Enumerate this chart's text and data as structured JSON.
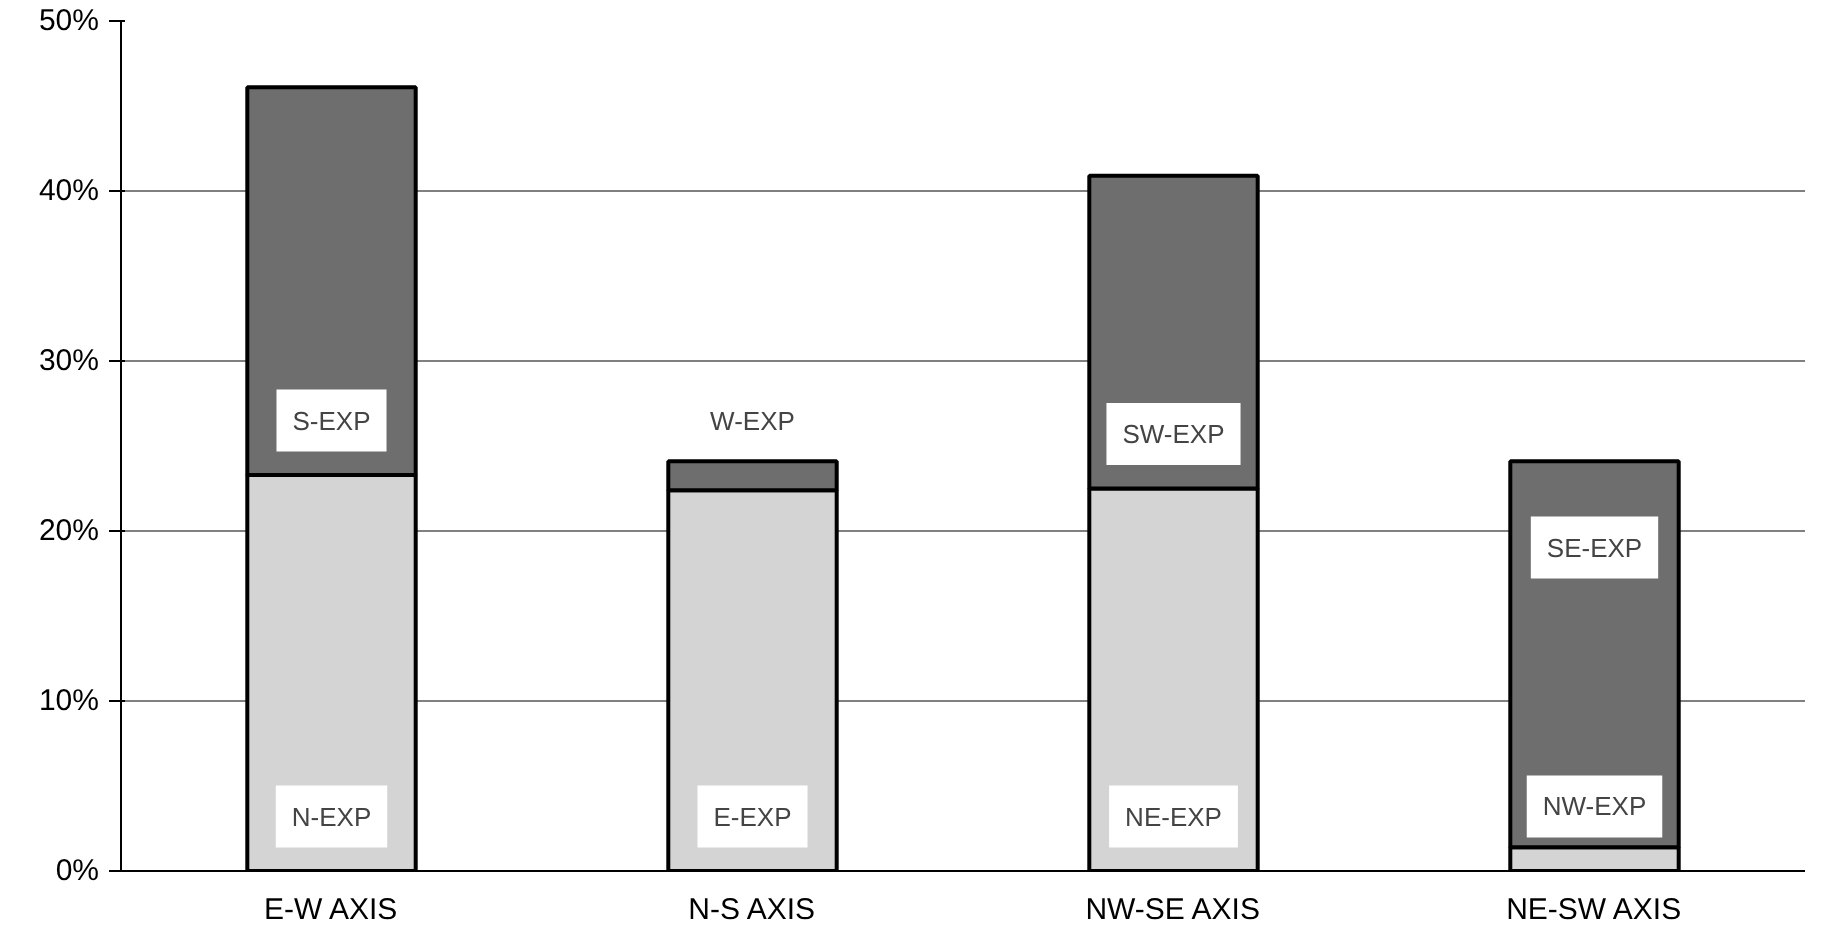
{
  "chart_data": {
    "type": "bar",
    "stacked": true,
    "categories": [
      "E-W AXIS",
      "N-S AXIS",
      "NW-SE AXIS",
      "NE-SW AXIS"
    ],
    "series": [
      {
        "color": "#d4d4d4",
        "values": [
          23.3,
          22.4,
          22.5,
          1.4
        ],
        "value_labels": [
          "N-EXP",
          "E-EXP",
          "NE-EXP",
          "NW-EXP"
        ]
      },
      {
        "color": "#6e6e6e",
        "values": [
          22.8,
          1.7,
          18.4,
          22.7
        ],
        "value_labels": [
          "S-EXP",
          "W-EXP",
          "SW-EXP",
          "SE-EXP"
        ]
      }
    ],
    "ylim": [
      0,
      50
    ],
    "yticks": [
      {
        "value": 0,
        "label": "0%"
      },
      {
        "value": 10,
        "label": "10%"
      },
      {
        "value": 20,
        "label": "20%"
      },
      {
        "value": 30,
        "label": "30%"
      },
      {
        "value": 40,
        "label": "40%"
      },
      {
        "value": 50,
        "label": "50%"
      }
    ],
    "grid": "y"
  }
}
